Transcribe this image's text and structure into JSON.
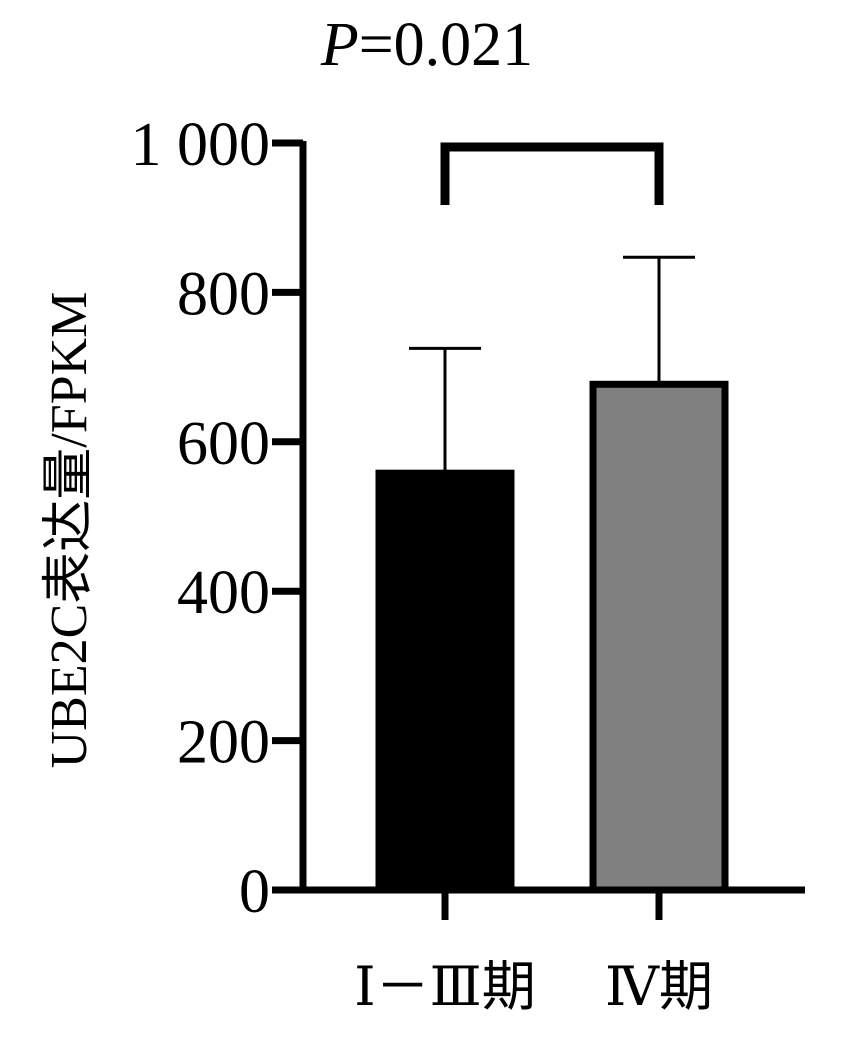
{
  "chart_data": {
    "type": "bar",
    "title_p_label": "P",
    "title_p_value": "=0.021",
    "ylabel": "UBE2C表达量/FPKM",
    "xlabel": "",
    "ylim": [
      0,
      1000
    ],
    "yticks": [
      0,
      200,
      400,
      600,
      800,
      1000
    ],
    "ytick_labels": [
      "0",
      "200",
      "400",
      "600",
      "800",
      "1 000"
    ],
    "categories": [
      "Ⅰ－Ⅲ期",
      "Ⅳ期"
    ],
    "values": [
      558,
      677
    ],
    "error_upper": [
      725,
      847
    ],
    "bar_colors": [
      "#000000",
      "#808080"
    ],
    "grid": false,
    "legend": "none",
    "significance_bracket": {
      "between": [
        0,
        1
      ],
      "label": "P=0.021"
    }
  }
}
